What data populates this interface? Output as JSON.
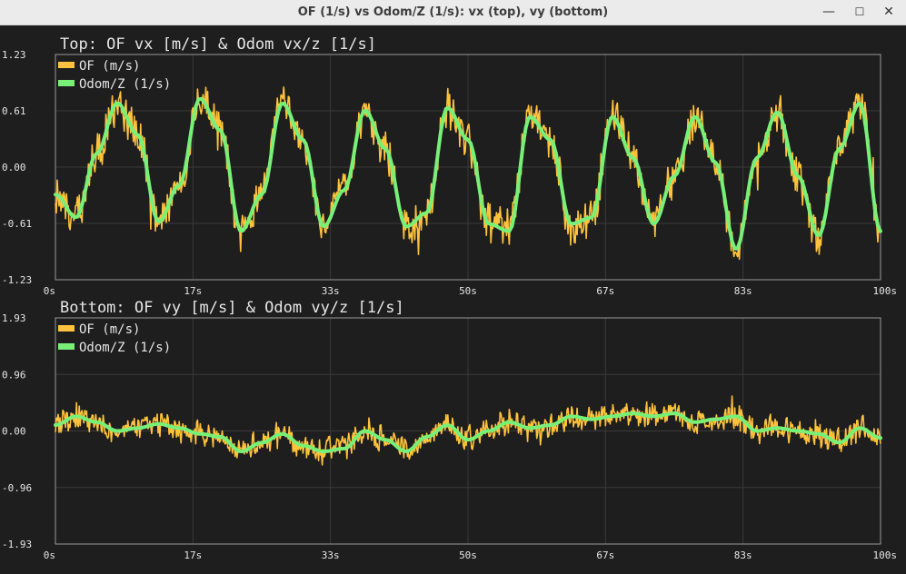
{
  "window": {
    "title": "OF (1/s) vs Odom/Z (1/s): vx (top), vy (bottom)",
    "min_icon": "window-minimize-icon",
    "max_icon": "window-maximize-icon",
    "close_icon": "window-close-icon",
    "min_glyph": "—",
    "max_glyph": "☐",
    "close_glyph": "✕"
  },
  "colors": {
    "background": "#1e1e1e",
    "grid": "#3a3a3a",
    "frame": "#9a9a9a",
    "text": "#e6e6e6",
    "of_series": "#ffc23c",
    "odom_series": "#78f078"
  },
  "chart_data": [
    {
      "type": "line",
      "title": "Top: OF vx [m/s]  &  Odom vx/z [1/s]",
      "xlabel": "",
      "ylabel": "",
      "x_ticks": [
        "0s",
        "17s",
        "33s",
        "50s",
        "67s",
        "83s",
        "100s"
      ],
      "y_ticks": [
        "1.23",
        "0.61",
        "0.00",
        "-0.61",
        "-1.23"
      ],
      "xlim": [
        0,
        100
      ],
      "ylim": [
        -1.23,
        1.23
      ],
      "grid": true,
      "legend": "top-left",
      "series": [
        {
          "name": "OF (m/s)",
          "style": "noisy",
          "x": [
            0,
            2.5,
            5.0,
            7.5,
            10.0,
            12.5,
            15.0,
            17.5,
            20.0,
            22.5,
            25.0,
            27.5,
            30.0,
            32.5,
            35.0,
            37.5,
            40.0,
            42.5,
            45.0,
            47.5,
            50.0,
            52.5,
            55.0,
            57.5,
            60.0,
            62.5,
            65.0,
            67.5,
            70.0,
            72.5,
            75.0,
            77.5,
            80.0,
            82.5,
            85.0,
            87.5,
            90.0,
            92.5,
            95.0,
            97.5,
            100.0
          ],
          "values": [
            -0.3,
            -0.55,
            0.15,
            0.7,
            0.35,
            -0.6,
            -0.2,
            0.75,
            0.4,
            -0.7,
            -0.3,
            0.7,
            0.3,
            -0.65,
            -0.25,
            0.62,
            0.2,
            -0.65,
            -0.5,
            0.65,
            0.3,
            -0.62,
            -0.7,
            0.55,
            0.3,
            -0.62,
            -0.55,
            0.55,
            0.1,
            -0.62,
            -0.1,
            0.55,
            0.05,
            -0.9,
            0.1,
            0.6,
            -0.1,
            -0.75,
            0.2,
            0.7,
            -0.7
          ]
        },
        {
          "name": "Odom/Z (1/s)",
          "style": "smooth",
          "x": [
            0,
            2.5,
            5.0,
            7.5,
            10.0,
            12.5,
            15.0,
            17.5,
            20.0,
            22.5,
            25.0,
            27.5,
            30.0,
            32.5,
            35.0,
            37.5,
            40.0,
            42.5,
            45.0,
            47.5,
            50.0,
            52.5,
            55.0,
            57.5,
            60.0,
            62.5,
            65.0,
            67.5,
            70.0,
            72.5,
            75.0,
            77.5,
            80.0,
            82.5,
            85.0,
            87.5,
            90.0,
            92.5,
            95.0,
            97.5,
            100.0
          ],
          "values": [
            -0.3,
            -0.55,
            0.15,
            0.7,
            0.35,
            -0.6,
            -0.2,
            0.75,
            0.4,
            -0.7,
            -0.3,
            0.7,
            0.3,
            -0.65,
            -0.25,
            0.62,
            0.2,
            -0.65,
            -0.5,
            0.65,
            0.3,
            -0.62,
            -0.7,
            0.55,
            0.3,
            -0.62,
            -0.55,
            0.55,
            0.1,
            -0.62,
            -0.1,
            0.55,
            0.05,
            -0.9,
            0.1,
            0.6,
            -0.1,
            -0.75,
            0.2,
            0.7,
            -0.7
          ]
        }
      ]
    },
    {
      "type": "line",
      "title": "Bottom: OF vy [m/s]  &  Odom vy/z [1/s]",
      "xlabel": "",
      "ylabel": "",
      "x_ticks": [
        "0s",
        "17s",
        "33s",
        "50s",
        "67s",
        "83s",
        "100s"
      ],
      "y_ticks": [
        "1.93",
        "0.96",
        "0.00",
        "-0.96",
        "-1.93"
      ],
      "xlim": [
        0,
        100
      ],
      "ylim": [
        -1.93,
        1.93
      ],
      "grid": true,
      "legend": "top-left",
      "series": [
        {
          "name": "OF (m/s)",
          "style": "noisy",
          "x": [
            0,
            2.5,
            5.0,
            7.5,
            10.0,
            12.5,
            15.0,
            17.5,
            20.0,
            22.5,
            25.0,
            27.5,
            30.0,
            32.5,
            35.0,
            37.5,
            40.0,
            42.5,
            45.0,
            47.5,
            50.0,
            52.5,
            55.0,
            57.5,
            60.0,
            62.5,
            65.0,
            67.5,
            70.0,
            72.5,
            75.0,
            77.5,
            80.0,
            82.5,
            85.0,
            87.5,
            90.0,
            92.5,
            95.0,
            97.5,
            100.0
          ],
          "values": [
            0.1,
            0.25,
            0.15,
            0.0,
            0.05,
            0.12,
            0.05,
            -0.05,
            -0.1,
            -0.35,
            -0.2,
            -0.05,
            -0.25,
            -0.35,
            -0.3,
            0.0,
            -0.15,
            -0.35,
            -0.1,
            0.1,
            -0.15,
            0.0,
            0.15,
            0.05,
            0.1,
            0.25,
            0.2,
            0.25,
            0.3,
            0.25,
            0.3,
            0.15,
            0.2,
            0.25,
            0.0,
            0.05,
            0.0,
            -0.05,
            -0.2,
            0.05,
            -0.12
          ]
        },
        {
          "name": "Odom/Z (1/s)",
          "style": "smooth",
          "x": [
            0,
            2.5,
            5.0,
            7.5,
            10.0,
            12.5,
            15.0,
            17.5,
            20.0,
            22.5,
            25.0,
            27.5,
            30.0,
            32.5,
            35.0,
            37.5,
            40.0,
            42.5,
            45.0,
            47.5,
            50.0,
            52.5,
            55.0,
            57.5,
            60.0,
            62.5,
            65.0,
            67.5,
            70.0,
            72.5,
            75.0,
            77.5,
            80.0,
            82.5,
            85.0,
            87.5,
            90.0,
            92.5,
            95.0,
            97.5,
            100.0
          ],
          "values": [
            0.1,
            0.25,
            0.15,
            0.0,
            0.05,
            0.12,
            0.05,
            -0.05,
            -0.1,
            -0.35,
            -0.2,
            -0.05,
            -0.25,
            -0.35,
            -0.3,
            0.0,
            -0.15,
            -0.35,
            -0.1,
            0.1,
            -0.15,
            0.0,
            0.15,
            0.05,
            0.1,
            0.25,
            0.2,
            0.25,
            0.3,
            0.25,
            0.3,
            0.15,
            0.2,
            0.25,
            0.0,
            0.05,
            0.0,
            -0.05,
            -0.2,
            0.05,
            -0.12
          ]
        }
      ]
    }
  ]
}
